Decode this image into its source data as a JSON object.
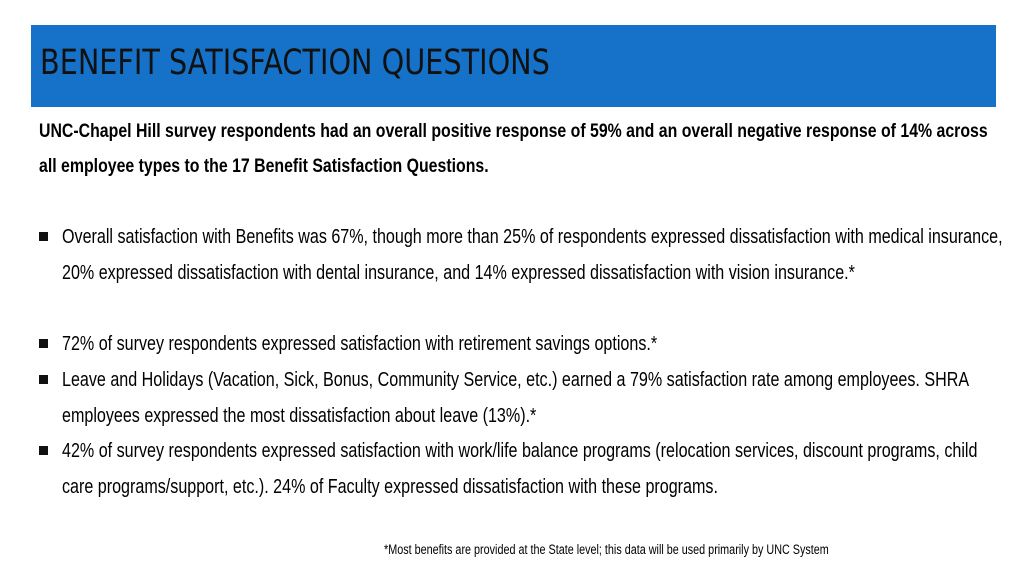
{
  "title": "BENEFIT SATISFACTION QUESTIONS",
  "lead": "UNC-Chapel Hill survey respondents had an overall positive response of 59% and an overall negative response of 14% across all employee types to the 17 Benefit Satisfaction Questions.",
  "bullets": [
    "Overall satisfaction with Benefits was 67%, though more than 25% of respondents expressed dissatisfaction with medical insurance, 20% expressed dissatisfaction with dental insurance, and 14% expressed dissatisfaction with vision insurance.*",
    "72% of survey respondents expressed satisfaction with retirement savings options.*",
    "Leave and Holidays (Vacation, Sick, Bonus, Community Service, etc.) earned a 79% satisfaction rate among employees. SHRA employees expressed the most dissatisfaction about leave (13%).*",
    "42% of survey respondents expressed satisfaction with work/life balance programs (relocation services, discount programs, child care programs/support, etc.).  24% of Faculty expressed dissatisfaction with these programs."
  ],
  "footnote": "*Most benefits are provided at the State level; this data will be used primarily by UNC System",
  "colors": {
    "title_bar": "#1572c8",
    "text": "#111111"
  }
}
